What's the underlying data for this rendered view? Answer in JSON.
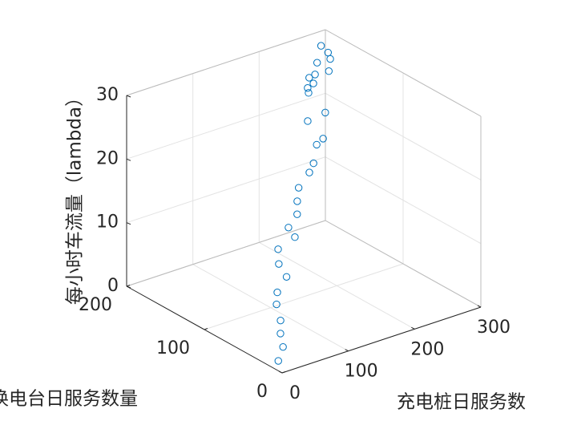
{
  "chart_data": {
    "type": "scatter3d",
    "xlabel": "充电桩日服务数",
    "ylabel": "换电台日服务数量",
    "zlabel": "每小时车流量（lambda）",
    "x": [
      6,
      19,
      21,
      27,
      28,
      35,
      56,
      49,
      55,
      85,
      80,
      99,
      105,
      113,
      135,
      146,
      171,
      159,
      156,
      186,
      169,
      170,
      181,
      177,
      187,
      209,
      196,
      217,
      216,
      209
    ],
    "y": [
      10,
      15,
      20,
      25,
      31,
      36,
      42,
      46,
      52,
      56,
      60,
      65,
      70,
      75,
      80,
      84,
      93,
      91,
      100,
      103,
      110,
      112,
      114,
      116,
      117,
      118,
      122,
      123,
      125,
      128
    ],
    "z": [
      1.0,
      2.4,
      4.1,
      5.6,
      7.7,
      9.0,
      10.3,
      12.3,
      14.0,
      14.6,
      16.0,
      17.1,
      18.6,
      20.1,
      21.4,
      22.2,
      24.6,
      24.2,
      27.4,
      27.5,
      30.7,
      31.3,
      31.5,
      32.4,
      32.5,
      32.2,
      33.7,
      33.5,
      34.4,
      35.5
    ],
    "xlim": [
      0,
      300
    ],
    "ylim": [
      0,
      200
    ],
    "zlim": [
      0,
      30
    ],
    "xticks": [
      0,
      100,
      200,
      300
    ],
    "yticks": [
      0,
      100,
      200
    ],
    "zticks": [
      0,
      10,
      20,
      30
    ],
    "color": "#0072bd",
    "grid": true
  }
}
